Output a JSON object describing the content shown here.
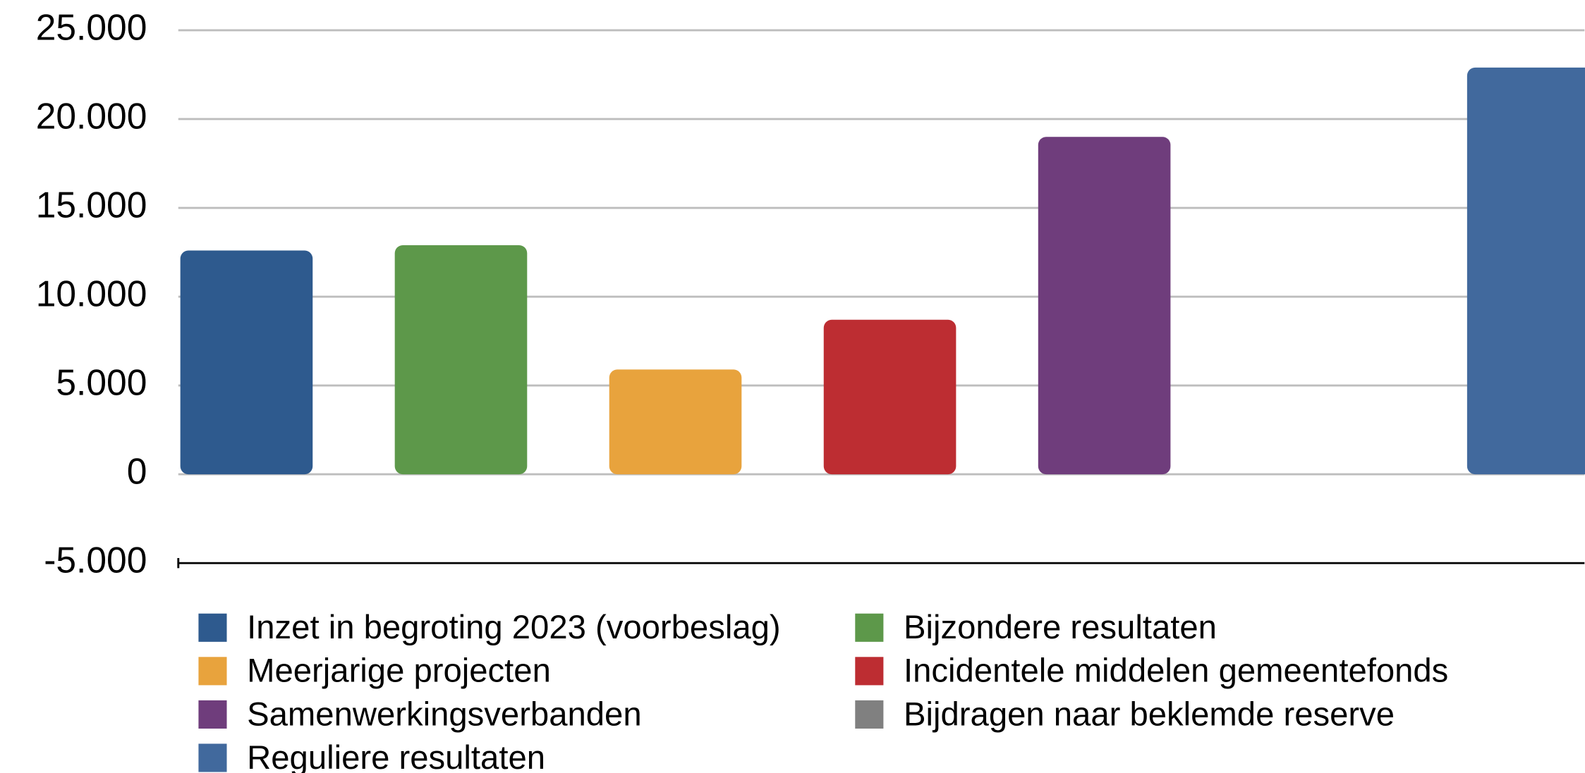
{
  "chart_data": {
    "type": "bar",
    "categories": [
      null
    ],
    "series": [
      {
        "name": "Inzet in begroting 2023 (voorbeslag)",
        "color": "#2e5a8e",
        "values": [
          12600
        ]
      },
      {
        "name": "Bijzondere resultaten",
        "color": "#5d984a",
        "values": [
          12900
        ]
      },
      {
        "name": "Meerjarige projecten",
        "color": "#e8a33d",
        "values": [
          5900
        ]
      },
      {
        "name": "Incidentele middelen gemeentefonds",
        "color": "#bd2d32",
        "values": [
          8700
        ]
      },
      {
        "name": "Samenwerkingsverbanden",
        "color": "#6f3d7c",
        "values": [
          19000
        ]
      },
      {
        "name": "Bijdragen naar beklemde reserve",
        "color": "#808080",
        "values": [
          0
        ]
      },
      {
        "name": "Reguliere resultaten",
        "color": "#41699d",
        "values": [
          22900
        ]
      }
    ],
    "ylim": [
      -5000,
      25000
    ],
    "yticks": [
      {
        "value": -5000,
        "label": "-5.000"
      },
      0,
      {
        "value": 5000,
        "label": "5.000"
      },
      {
        "value": 10000,
        "label": "10.000"
      },
      {
        "value": 15000,
        "label": "15.000"
      },
      {
        "value": 20000,
        "label": "20.000"
      },
      {
        "value": 25000,
        "label": "25.000"
      }
    ],
    "grid": true
  }
}
